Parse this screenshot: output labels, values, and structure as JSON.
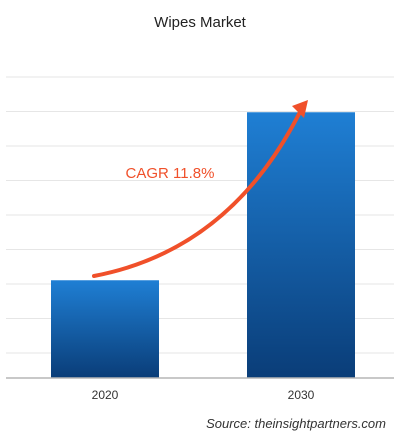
{
  "chart_data": {
    "type": "bar",
    "title": "Wipes Market",
    "categories": [
      "2020",
      "2030"
    ],
    "values": [
      32,
      87
    ],
    "ylim": [
      0,
      110
    ],
    "grid": true,
    "annotation": "CAGR 11.8%",
    "source": "Source: theinsightpartners.com",
    "colors": {
      "bar_top": "#1f7fd4",
      "bar_bottom": "#0a3d78",
      "arrow": "#f0502a",
      "annotation": "#f0502a",
      "grid": "#e6e6e6",
      "axis": "#b5b5b5"
    }
  }
}
